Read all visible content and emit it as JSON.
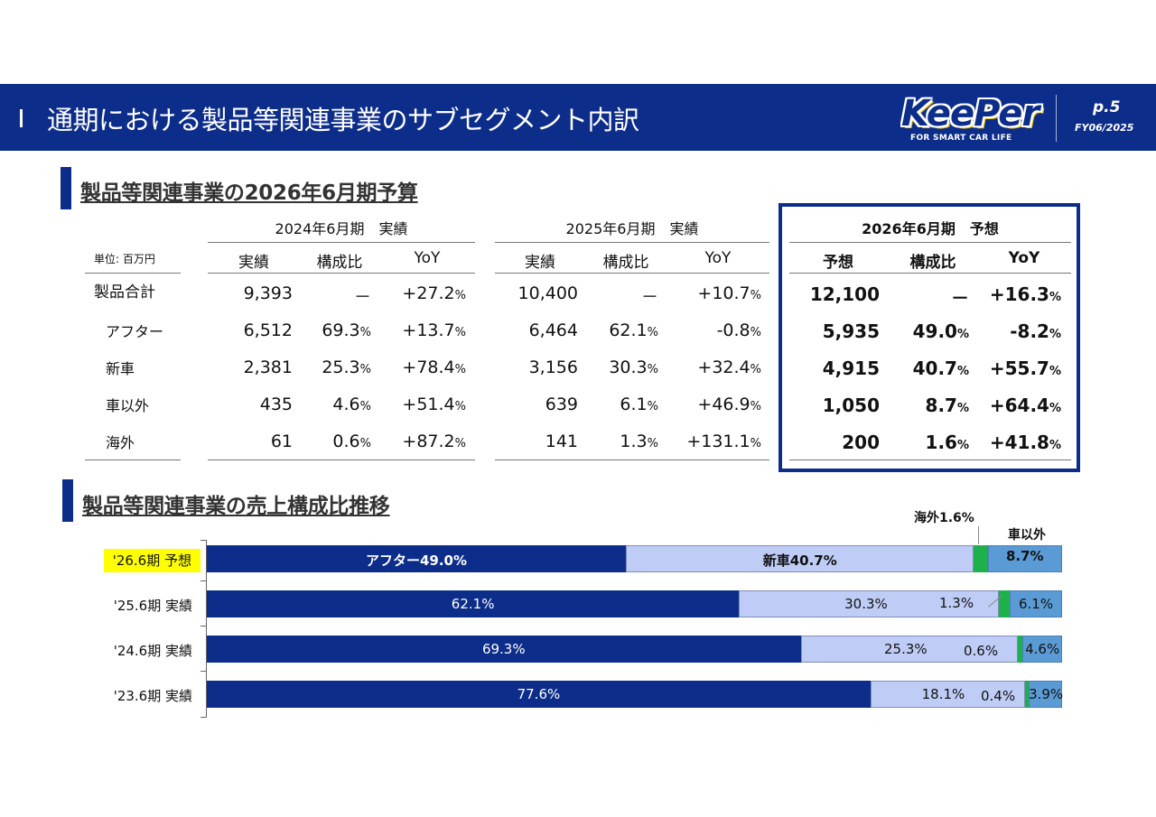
{
  "header": {
    "title": "通期における製品等関連事業のサブセグメント内訳",
    "logo_text": "KeePer",
    "logo_sub": "FOR SMART CAR LIFE",
    "page": "p.5",
    "fy": "FY06/2025"
  },
  "section1": {
    "title": "製品等関連事業の2026年6月期予算",
    "unit": "単位: 百万円",
    "groups": [
      "2024年6月期　実績",
      "2025年6月期　実績",
      "2026年6月期　予想"
    ],
    "cols_a": [
      "実績",
      "構成比",
      "YoY"
    ],
    "cols_b": [
      "実績",
      "構成比",
      "YoY"
    ],
    "cols_c": [
      "予想",
      "構成比",
      "YoY"
    ],
    "rows": [
      {
        "label": "製品合計",
        "v24": "9,393",
        "r24": "－",
        "y24": "+27.2",
        "v25": "10,400",
        "r25": "－",
        "y25": "+10.7",
        "v26": "12,100",
        "r26": "－",
        "y26": "+16.3"
      },
      {
        "label": "アフター",
        "v24": "6,512",
        "r24": "69.3",
        "y24": "+13.7",
        "v25": "6,464",
        "r25": "62.1",
        "y25": "-0.8",
        "v26": "5,935",
        "r26": "49.0",
        "y26": "-8.2"
      },
      {
        "label": "新車",
        "v24": "2,381",
        "r24": "25.3",
        "y24": "+78.4",
        "v25": "3,156",
        "r25": "30.3",
        "y25": "+32.4",
        "v26": "4,915",
        "r26": "40.7",
        "y26": "+55.7"
      },
      {
        "label": "車以外",
        "v24": "435",
        "r24": "4.6",
        "y24": "+51.4",
        "v25": "639",
        "r25": "6.1",
        "y25": "+46.9",
        "v26": "1,050",
        "r26": "8.7",
        "y26": "+64.4"
      },
      {
        "label": "海外",
        "v24": "61",
        "r24": "0.6",
        "y24": "+87.2",
        "v25": "141",
        "r25": "1.3",
        "y25": "+131.1",
        "v26": "200",
        "r26": "1.6",
        "y26": "+41.8"
      }
    ],
    "pct": "%"
  },
  "section2": {
    "title": "製品等関連事業の売上構成比推移"
  },
  "chart_data": {
    "type": "bar",
    "stacked": true,
    "orientation": "horizontal",
    "categories": [
      "'26.6期 予想",
      "'25.6期 実績",
      "'24.6期 実績",
      "'23.6期 実績"
    ],
    "series": [
      {
        "name": "アフター",
        "values": [
          49.0,
          62.1,
          69.3,
          77.6
        ],
        "color": "#0d2d8a"
      },
      {
        "name": "新車",
        "values": [
          40.7,
          30.3,
          25.3,
          18.1
        ],
        "color": "#bfcdf6"
      },
      {
        "name": "海外",
        "values": [
          1.6,
          1.3,
          0.6,
          0.4
        ],
        "color": "#1db14b"
      },
      {
        "name": "車以外",
        "values": [
          8.7,
          6.1,
          4.6,
          3.9
        ],
        "color": "#5b9bd5"
      }
    ],
    "labels": [
      [
        "アフター49.0%",
        "新車40.7%",
        "海外1.6%",
        "8.7%"
      ],
      [
        "62.1%",
        "30.3%",
        "1.3%",
        "6.1%"
      ],
      [
        "69.3%",
        "25.3%",
        "0.6%",
        "4.6%"
      ],
      [
        "77.6%",
        "18.1%",
        "0.4%",
        "3.9%"
      ]
    ],
    "callout_other_title": "車以外",
    "highlight_category": "'26.6期 予想",
    "xlim": [
      0,
      100
    ]
  }
}
